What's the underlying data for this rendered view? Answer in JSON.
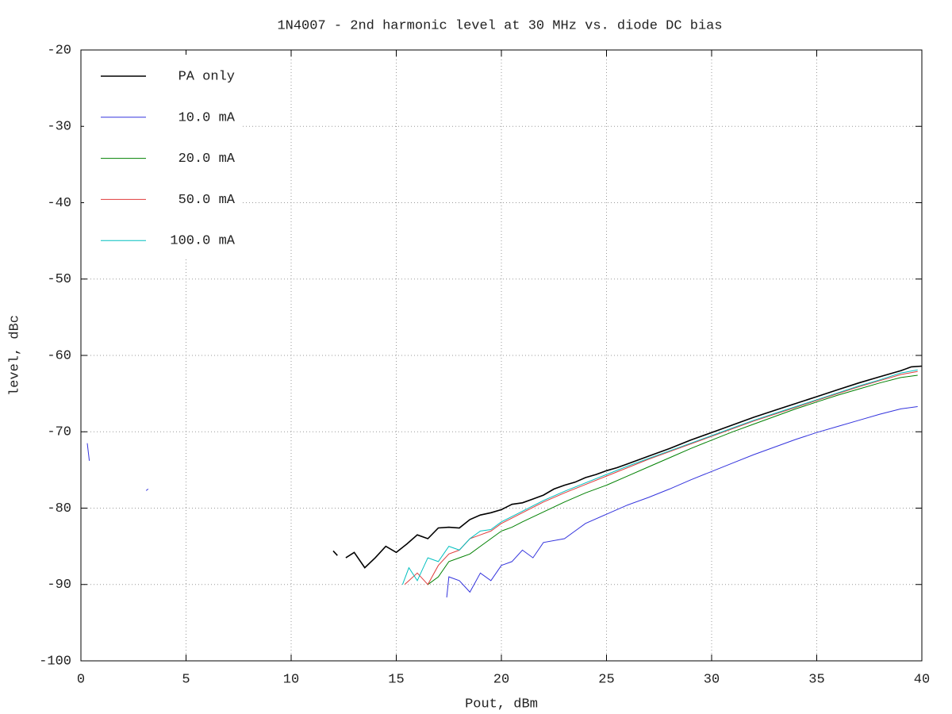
{
  "chart_data": {
    "type": "line",
    "title": "1N4007 - 2nd harmonic level at 30 MHz vs. diode DC bias",
    "x_label": "Pout, dBm",
    "y_label": "level, dBc",
    "xlim": [
      0,
      40
    ],
    "xticks": [
      0,
      5,
      10,
      15,
      20,
      25,
      30,
      35,
      40
    ],
    "ylim": [
      -100,
      -20
    ],
    "yticks": [
      -100,
      -90,
      -80,
      -70,
      -60,
      -50,
      -40,
      -30,
      -20
    ],
    "grid": true,
    "legend": "top-left",
    "series": [
      {
        "name": "PA only",
        "color": "#000000",
        "x": [
          12.0,
          12.2,
          null,
          12.6,
          13.0,
          13.5,
          14.0,
          14.5,
          15.0,
          15.5,
          16.0,
          16.5,
          17.0,
          17.5,
          18.0,
          18.5,
          19.0,
          19.5,
          20.0,
          20.5,
          21.0,
          21.5,
          22.0,
          22.5,
          23.0,
          23.5,
          24.0,
          24.5,
          25.0,
          25.5,
          26.0,
          27.0,
          28.0,
          29.0,
          30.0,
          31.0,
          32.0,
          33.0,
          34.0,
          35.0,
          36.0,
          37.0,
          38.0,
          39.0,
          39.5,
          40.0
        ],
        "values": [
          -85.6,
          -86.2,
          null,
          -86.5,
          -85.8,
          -87.8,
          -86.5,
          -85,
          -85.8,
          -84.7,
          -83.5,
          -84,
          -82.6,
          -82.5,
          -82.6,
          -81.5,
          -80.9,
          -80.6,
          -80.2,
          -79.5,
          -79.3,
          -78.8,
          -78.3,
          -77.5,
          -77,
          -76.6,
          -76,
          -75.6,
          -75.1,
          -74.7,
          -74.2,
          -73.2,
          -72.2,
          -71.1,
          -70.1,
          -69.1,
          -68.1,
          -67.2,
          -66.3,
          -65.4,
          -64.5,
          -63.6,
          -62.8,
          -62.0,
          -61.5,
          -61.4
        ]
      },
      {
        "name": "10.0 mA",
        "color": "#3333dd",
        "x": [
          0.3,
          0.4,
          null,
          3.1,
          3.2,
          null,
          17.4,
          17.5,
          18.0,
          18.5,
          19.0,
          19.5,
          20.0,
          20.5,
          21.0,
          21.5,
          22.0,
          23.0,
          23.5,
          24.0,
          25.0,
          26.0,
          27.0,
          28.0,
          29.0,
          30.0,
          31.0,
          32.0,
          33.0,
          34.0,
          35.0,
          36.0,
          37.0,
          38.0,
          39.0,
          39.8
        ],
        "values": [
          -71.5,
          -73.8,
          null,
          -77.7,
          -77.5,
          null,
          -91.7,
          -89,
          -89.5,
          -91,
          -88.5,
          -89.5,
          -87.5,
          -87,
          -85.5,
          -86.5,
          -84.5,
          -84,
          -83,
          -82,
          -80.8,
          -79.6,
          -78.6,
          -77.5,
          -76.3,
          -75.2,
          -74.1,
          -73,
          -72,
          -71,
          -70.1,
          -69.3,
          -68.5,
          -67.7,
          -67,
          -66.7
        ]
      },
      {
        "name": "20.0 mA",
        "color": "#008000",
        "x": [
          16.5,
          17.0,
          17.5,
          18.0,
          18.5,
          19.0,
          19.5,
          20.0,
          20.5,
          21.0,
          22.0,
          23.0,
          24.0,
          25.0,
          26.0,
          27.0,
          28.0,
          29.0,
          30.0,
          31.0,
          32.0,
          33.0,
          34.0,
          35.0,
          36.0,
          37.0,
          38.0,
          39.0,
          39.8
        ],
        "values": [
          -90,
          -89,
          -87,
          -86.5,
          -86,
          -85,
          -84,
          -83,
          -82.5,
          -81.8,
          -80.5,
          -79.2,
          -78,
          -77,
          -75.8,
          -74.6,
          -73.4,
          -72.2,
          -71.1,
          -70,
          -69,
          -68,
          -67,
          -66.1,
          -65.2,
          -64.4,
          -63.6,
          -62.9,
          -62.6
        ]
      },
      {
        "name": "50.0 mA",
        "color": "#e03c3c",
        "x": [
          15.4,
          16.0,
          16.5,
          17.0,
          17.5,
          18.0,
          18.5,
          19.0,
          19.5,
          20.0,
          21.0,
          22.0,
          23.0,
          24.0,
          25.0,
          26.0,
          27.0,
          28.0,
          29.0,
          30.0,
          31.0,
          32.0,
          33.0,
          34.0,
          35.0,
          36.0,
          37.0,
          38.0,
          39.0,
          39.8
        ],
        "values": [
          -90,
          -88.5,
          -90,
          -87.5,
          -86,
          -85.5,
          -84,
          -83.5,
          -83,
          -82,
          -80.6,
          -79.2,
          -78,
          -76.9,
          -75.8,
          -74.7,
          -73.6,
          -72.6,
          -71.6,
          -70.6,
          -69.6,
          -68.6,
          -67.7,
          -66.8,
          -65.9,
          -65,
          -64.1,
          -63.3,
          -62.5,
          -62.1
        ]
      },
      {
        "name": "100.0 mA",
        "color": "#00bfbf",
        "x": [
          15.3,
          15.6,
          16.0,
          16.5,
          17.0,
          17.5,
          18.0,
          18.5,
          19.0,
          19.5,
          20.0,
          21.0,
          22.0,
          23.0,
          24.0,
          25.0,
          26.0,
          27.0,
          28.0,
          29.0,
          30.0,
          31.0,
          32.0,
          33.0,
          34.0,
          35.0,
          36.0,
          37.0,
          38.0,
          39.0,
          39.8
        ],
        "values": [
          -90,
          -87.8,
          -89.5,
          -86.5,
          -87,
          -85,
          -85.5,
          -84,
          -83,
          -82.8,
          -81.8,
          -80.4,
          -79,
          -77.8,
          -76.7,
          -75.6,
          -74.5,
          -73.5,
          -72.5,
          -71.5,
          -70.5,
          -69.5,
          -68.5,
          -67.6,
          -66.7,
          -65.8,
          -64.9,
          -64,
          -63.2,
          -62.3,
          -61.9
        ]
      }
    ]
  }
}
